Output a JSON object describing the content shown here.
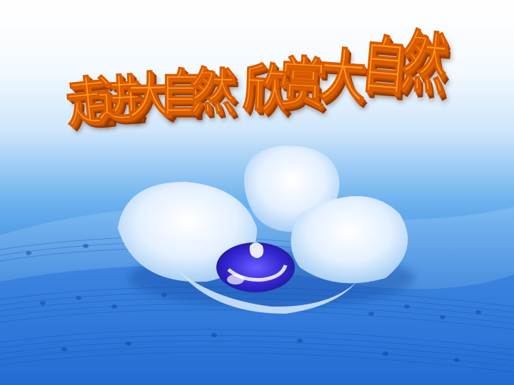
{
  "slide": {
    "title_part1": [
      "走",
      "进",
      "大",
      "自",
      "然"
    ],
    "title_part2": [
      "欣",
      "赏",
      "大",
      "自",
      "然"
    ],
    "colors": {
      "title_fill": "#ff9a1f",
      "title_extrude": "#b44700",
      "background_top": "#ffffff",
      "background_bottom": "#1d6bd2",
      "flower_petal": "#eaf4ff",
      "flower_center": "#3a2fd6"
    },
    "image": "white-orchid-on-sheet-music"
  }
}
